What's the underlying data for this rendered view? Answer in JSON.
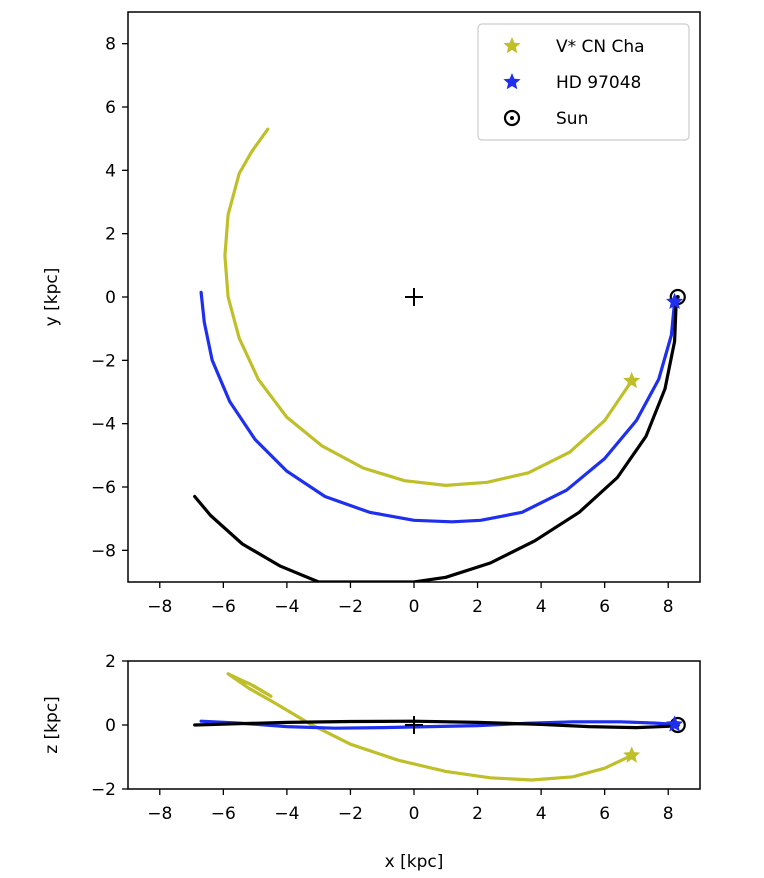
{
  "chart_data": [
    {
      "type": "line",
      "panel": "xy",
      "xlabel": "",
      "ylabel": "y [kpc]",
      "xlim": [
        -9,
        9
      ],
      "ylim": [
        -9,
        9
      ],
      "xticks": [
        -8,
        -6,
        -4,
        -2,
        0,
        2,
        4,
        6,
        8
      ],
      "yticks": [
        -8,
        -6,
        -4,
        -2,
        0,
        2,
        4,
        6,
        8
      ],
      "xtick_labels": [
        "−8",
        "−6",
        "−4",
        "−2",
        "0",
        "2",
        "4",
        "6",
        "8"
      ],
      "ytick_labels": [
        "−8",
        "−6",
        "−4",
        "−2",
        "0",
        "2",
        "4",
        "6",
        "8"
      ],
      "center_marker": {
        "x": 0,
        "y": 0,
        "symbol": "+"
      },
      "series": [
        {
          "name": "V* CN Cha",
          "color": "#bfbf2a",
          "points": [
            [
              6.85,
              -2.65
            ],
            [
              6.0,
              -3.9
            ],
            [
              4.9,
              -4.9
            ],
            [
              3.6,
              -5.55
            ],
            [
              2.3,
              -5.85
            ],
            [
              1.0,
              -5.95
            ],
            [
              -0.3,
              -5.8
            ],
            [
              -1.6,
              -5.4
            ],
            [
              -2.9,
              -4.7
            ],
            [
              -4.0,
              -3.8
            ],
            [
              -4.9,
              -2.6
            ],
            [
              -5.5,
              -1.3
            ],
            [
              -5.85,
              0.0
            ],
            [
              -5.95,
              1.3
            ],
            [
              -5.85,
              2.6
            ],
            [
              -5.5,
              3.9
            ],
            [
              -5.1,
              4.6
            ],
            [
              -4.6,
              5.3
            ]
          ],
          "current_position": [
            6.85,
            -2.65
          ]
        },
        {
          "name": "HD 97048",
          "color": "#1f2fef",
          "points": [
            [
              8.2,
              -0.15
            ],
            [
              8.1,
              -1.2
            ],
            [
              7.7,
              -2.6
            ],
            [
              7.0,
              -3.9
            ],
            [
              6.0,
              -5.1
            ],
            [
              4.8,
              -6.1
            ],
            [
              3.4,
              -6.8
            ],
            [
              2.1,
              -7.05
            ],
            [
              1.2,
              -7.1
            ],
            [
              0.0,
              -7.05
            ],
            [
              -1.4,
              -6.8
            ],
            [
              -2.8,
              -6.3
            ],
            [
              -4.0,
              -5.5
            ],
            [
              -5.0,
              -4.5
            ],
            [
              -5.8,
              -3.3
            ],
            [
              -6.35,
              -2.0
            ],
            [
              -6.6,
              -0.8
            ],
            [
              -6.7,
              0.15
            ]
          ],
          "current_position": [
            8.2,
            -0.15
          ]
        },
        {
          "name": "",
          "color": "#000000",
          "points": [
            [
              8.25,
              -0.15
            ],
            [
              8.2,
              -1.4
            ],
            [
              7.9,
              -2.9
            ],
            [
              7.3,
              -4.4
            ],
            [
              6.4,
              -5.7
            ],
            [
              5.2,
              -6.8
            ],
            [
              3.8,
              -7.7
            ],
            [
              2.4,
              -8.4
            ],
            [
              1.0,
              -8.85
            ],
            [
              0.0,
              -9.0
            ],
            [
              -1.2,
              -9.0
            ],
            [
              -3.0,
              -9.0
            ],
            [
              -4.2,
              -8.5
            ],
            [
              -5.4,
              -7.8
            ],
            [
              -6.4,
              -6.9
            ],
            [
              -6.9,
              -6.3
            ]
          ]
        }
      ],
      "sun": {
        "name": "Sun",
        "x": 8.3,
        "y": 0.0
      },
      "legend": {
        "placement": "top-right",
        "entries": [
          {
            "label": "V* CN Cha",
            "color": "#bfbf2a",
            "marker": "star"
          },
          {
            "label": "HD 97048",
            "color": "#1f2fef",
            "marker": "star"
          },
          {
            "label": "Sun",
            "color": "#000000",
            "marker": "sun"
          }
        ]
      }
    },
    {
      "type": "line",
      "panel": "xz",
      "xlabel": "x [kpc]",
      "ylabel": "z [kpc]",
      "xlim": [
        -9,
        9
      ],
      "ylim": [
        -2,
        2
      ],
      "xticks": [
        -8,
        -6,
        -4,
        -2,
        0,
        2,
        4,
        6,
        8
      ],
      "yticks": [
        -2,
        0,
        2
      ],
      "xtick_labels": [
        "−8",
        "−6",
        "−4",
        "−2",
        "0",
        "2",
        "4",
        "6",
        "8"
      ],
      "ytick_labels": [
        "−2",
        "0",
        "2"
      ],
      "center_marker": {
        "x": 0,
        "y": 0,
        "symbol": "+"
      },
      "series": [
        {
          "name": "V* CN Cha",
          "color": "#bfbf2a",
          "points": [
            [
              6.85,
              -0.95
            ],
            [
              6.0,
              -1.35
            ],
            [
              5.0,
              -1.62
            ],
            [
              3.7,
              -1.72
            ],
            [
              2.4,
              -1.65
            ],
            [
              1.0,
              -1.45
            ],
            [
              -0.5,
              -1.1
            ],
            [
              -2.0,
              -0.6
            ],
            [
              -3.3,
              0.05
            ],
            [
              -4.4,
              0.7
            ],
            [
              -5.2,
              1.15
            ],
            [
              -5.85,
              1.6
            ],
            [
              -5.0,
              1.2
            ],
            [
              -4.5,
              0.9
            ],
            [
              -5.2,
              1.3
            ],
            [
              -5.6,
              1.45
            ]
          ],
          "current_position": [
            6.85,
            -0.95
          ]
        },
        {
          "name": "HD 97048",
          "color": "#1f2fef",
          "points": [
            [
              -6.7,
              0.12
            ],
            [
              -5.5,
              0.06
            ],
            [
              -4.0,
              -0.05
            ],
            [
              -2.5,
              -0.1
            ],
            [
              -1.0,
              -0.08
            ],
            [
              0.5,
              -0.05
            ],
            [
              2.0,
              -0.02
            ],
            [
              3.5,
              0.05
            ],
            [
              5.0,
              0.1
            ],
            [
              6.5,
              0.1
            ],
            [
              7.6,
              0.06
            ],
            [
              8.2,
              0.02
            ]
          ],
          "current_position": [
            8.2,
            0.02
          ]
        },
        {
          "name": "",
          "color": "#000000",
          "points": [
            [
              -6.9,
              0.0
            ],
            [
              -5.5,
              0.04
            ],
            [
              -4.0,
              0.08
            ],
            [
              -2.0,
              0.11
            ],
            [
              0.0,
              0.12
            ],
            [
              2.0,
              0.08
            ],
            [
              4.0,
              0.02
            ],
            [
              5.5,
              -0.05
            ],
            [
              7.0,
              -0.08
            ],
            [
              8.0,
              -0.04
            ],
            [
              8.3,
              0.0
            ]
          ]
        }
      ],
      "sun": {
        "name": "Sun",
        "x": 8.3,
        "y": 0.0
      }
    }
  ]
}
